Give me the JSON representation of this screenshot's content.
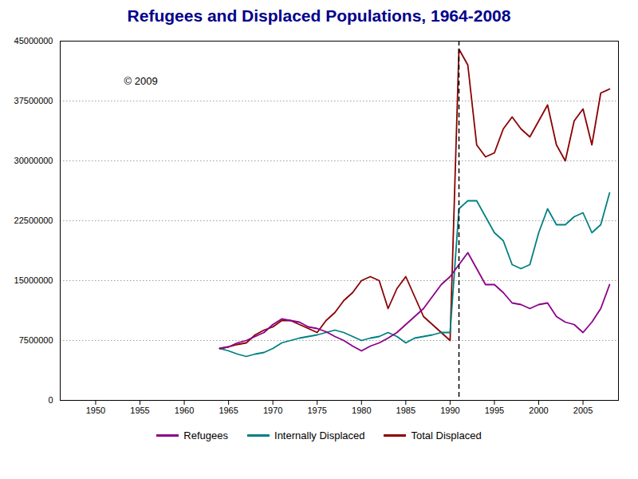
{
  "chart_data": {
    "type": "line",
    "title": "Refugees and Displaced Populations, 1964-2008",
    "title_color": "#00008B",
    "x": [
      1964,
      1965,
      1966,
      1967,
      1968,
      1969,
      1970,
      1971,
      1972,
      1973,
      1974,
      1975,
      1976,
      1977,
      1978,
      1979,
      1980,
      1981,
      1982,
      1983,
      1984,
      1985,
      1986,
      1987,
      1988,
      1989,
      1990,
      1991,
      1992,
      1993,
      1994,
      1995,
      1996,
      1997,
      1998,
      1999,
      2000,
      2001,
      2002,
      2003,
      2004,
      2005,
      2006,
      2007,
      2008
    ],
    "series": [
      {
        "name": "Refugees",
        "color": "#8B008B",
        "values": [
          6500000,
          6700000,
          7200000,
          7500000,
          8000000,
          8500000,
          9500000,
          10200000,
          10000000,
          9800000,
          9200000,
          9000000,
          8600000,
          8000000,
          7500000,
          6800000,
          6200000,
          6800000,
          7200000,
          7800000,
          8500000,
          9500000,
          10500000,
          11500000,
          13000000,
          14500000,
          15500000,
          17000000,
          18500000,
          16500000,
          14500000,
          14500000,
          13500000,
          12200000,
          12000000,
          11500000,
          12000000,
          12200000,
          10500000,
          9800000,
          9500000,
          8500000,
          9800000,
          11500000,
          14500000
        ]
      },
      {
        "name": "Internally Displaced",
        "color": "#008080",
        "values": [
          6500000,
          6200000,
          5800000,
          5500000,
          5800000,
          6000000,
          6500000,
          7200000,
          7500000,
          7800000,
          8000000,
          8200000,
          8500000,
          8800000,
          8500000,
          8000000,
          7500000,
          7800000,
          8000000,
          8500000,
          8000000,
          7200000,
          7800000,
          8000000,
          8200000,
          8500000,
          8500000,
          24000000,
          25000000,
          25000000,
          23000000,
          21000000,
          20000000,
          17000000,
          16500000,
          17000000,
          21000000,
          24000000,
          22000000,
          22000000,
          23000000,
          23500000,
          21000000,
          22000000,
          26000000
        ]
      },
      {
        "name": "Total Displaced",
        "color": "#8B0000",
        "values": [
          6500000,
          6700000,
          7000000,
          7200000,
          8200000,
          8800000,
          9200000,
          10000000,
          10000000,
          9500000,
          9000000,
          8500000,
          10000000,
          11000000,
          12500000,
          13500000,
          15000000,
          15500000,
          15000000,
          11500000,
          14000000,
          15500000,
          13000000,
          10500000,
          9500000,
          8500000,
          7500000,
          44000000,
          42000000,
          32000000,
          30500000,
          31000000,
          34000000,
          35500000,
          34000000,
          33000000,
          35000000,
          37000000,
          32000000,
          30000000,
          35000000,
          36500000,
          32000000,
          38500000,
          39000000
        ]
      }
    ],
    "xlim": [
      1946,
      2009
    ],
    "ylim": [
      0,
      45000000
    ],
    "xticks": [
      1950,
      1955,
      1960,
      1965,
      1970,
      1975,
      1980,
      1985,
      1990,
      1995,
      2000,
      2005
    ],
    "yticks": [
      0,
      7500000,
      15000000,
      22500000,
      30000000,
      37500000,
      45000000
    ],
    "grid": "y",
    "legend": "bottom",
    "annotations": [
      {
        "type": "vline",
        "x": 1991,
        "color": "#000000",
        "line_style": "dashed"
      },
      {
        "text": "© 2009"
      }
    ]
  }
}
